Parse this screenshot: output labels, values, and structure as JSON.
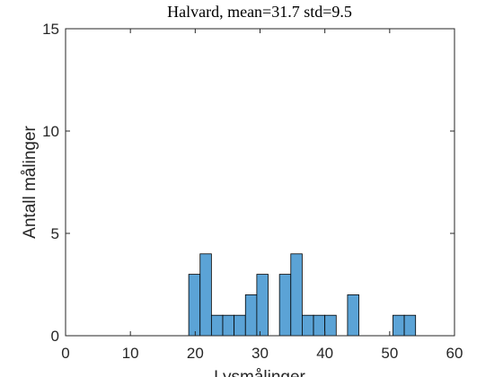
{
  "chart_data": {
    "type": "bar",
    "title": "Halvard, mean=31.7 std=9.5",
    "xlabel": "Lysmålinger",
    "ylabel": "Antall målinger",
    "xlim": [
      0,
      60
    ],
    "ylim": [
      0,
      15
    ],
    "xticks": [
      0,
      10,
      20,
      30,
      40,
      50,
      60
    ],
    "yticks": [
      0,
      5,
      10,
      15
    ],
    "grid": false,
    "bin_width": 1.75,
    "bins": [
      {
        "start": 19.0,
        "end": 20.75,
        "count": 3
      },
      {
        "start": 20.75,
        "end": 22.5,
        "count": 4
      },
      {
        "start": 22.5,
        "end": 24.25,
        "count": 1
      },
      {
        "start": 24.25,
        "end": 26.0,
        "count": 1
      },
      {
        "start": 26.0,
        "end": 27.75,
        "count": 1
      },
      {
        "start": 27.75,
        "end": 29.5,
        "count": 2
      },
      {
        "start": 29.5,
        "end": 31.25,
        "count": 3
      },
      {
        "start": 33.0,
        "end": 34.75,
        "count": 3
      },
      {
        "start": 34.75,
        "end": 36.5,
        "count": 4
      },
      {
        "start": 36.5,
        "end": 38.25,
        "count": 1
      },
      {
        "start": 38.25,
        "end": 40.0,
        "count": 1
      },
      {
        "start": 40.0,
        "end": 41.75,
        "count": 1
      },
      {
        "start": 43.5,
        "end": 45.25,
        "count": 2
      },
      {
        "start": 50.5,
        "end": 52.25,
        "count": 1
      },
      {
        "start": 52.25,
        "end": 54.0,
        "count": 1
      }
    ],
    "bar_color": "#5ba3d6",
    "edge_color": "#000000"
  }
}
